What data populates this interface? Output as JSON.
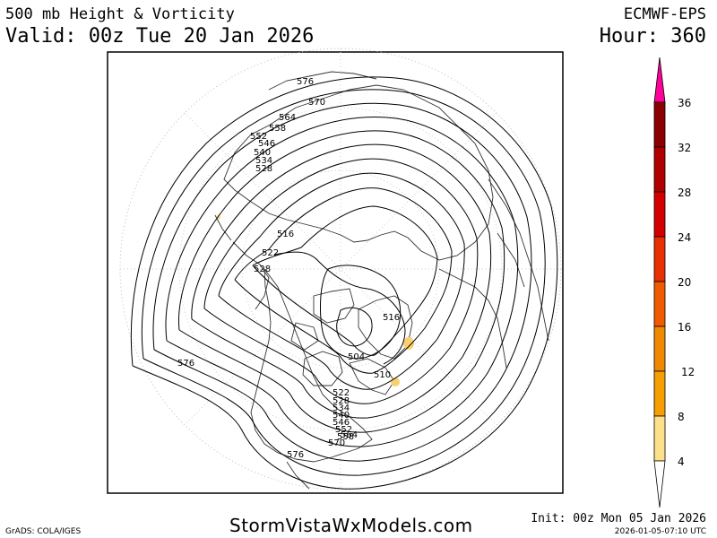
{
  "header": {
    "title": "500 mb Height & Vorticity",
    "valid": "Valid: 00z Tue 20 Jan 2026",
    "model": "ECMWF-EPS",
    "hour": "Hour: 360"
  },
  "footer": {
    "credit": "GrADS: COLA/IGES",
    "site": "StormVistaWxModels.com",
    "init": "Init: 00z Mon 05 Jan 2026",
    "timestamp": "2026-01-05-07:10 UTC"
  },
  "map": {
    "projection": "north-polar-stereographic",
    "contour_labels": [
      "576",
      "570",
      "564",
      "558",
      "552",
      "546",
      "540",
      "534",
      "528",
      "516",
      "522",
      "528",
      "516",
      "504",
      "510",
      "522",
      "528",
      "534",
      "540",
      "546",
      "552",
      "558",
      "564",
      "570",
      "576",
      "576"
    ]
  },
  "colorbar": {
    "labels": [
      "36",
      "32",
      "28",
      "24",
      "20",
      "16",
      "12",
      "8",
      "4"
    ],
    "colors": [
      "#ff0099",
      "#8b0000",
      "#b00000",
      "#d40000",
      "#e83000",
      "#f05a00",
      "#f08800",
      "#f5a000",
      "#f8c048",
      "#fde08a"
    ]
  }
}
